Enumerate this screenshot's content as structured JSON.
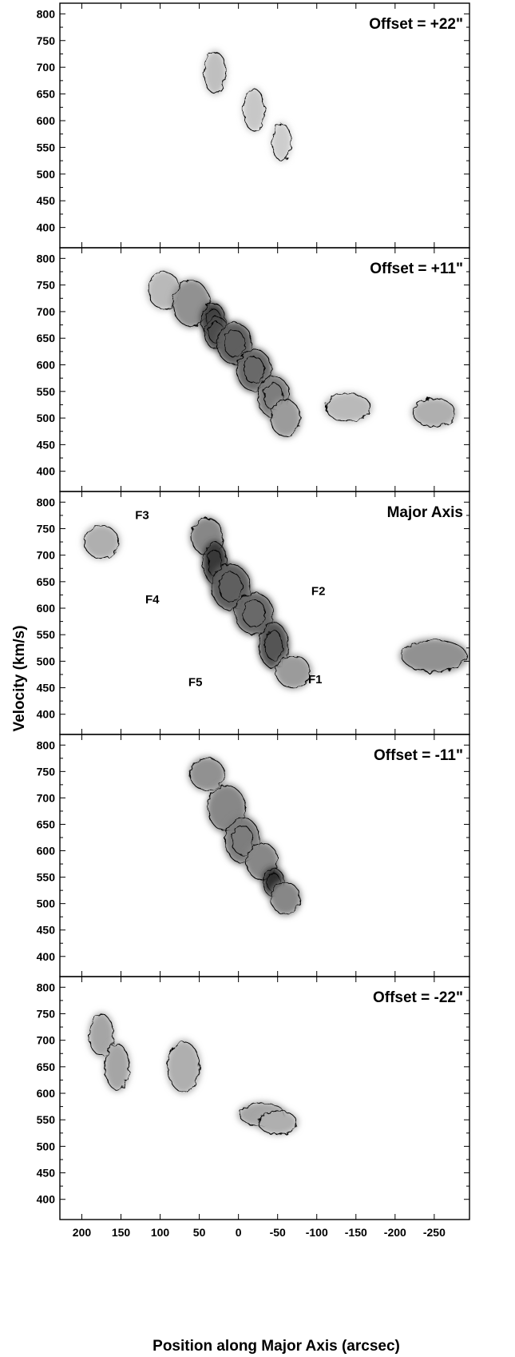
{
  "chart_data": {
    "type": "contour",
    "xlabel": "Position along Major Axis (arcsec)",
    "ylabel": "Velocity (km/s)",
    "xlim": [
      228,
      -295
    ],
    "ylim": [
      380,
      808
    ],
    "x_ticks": [
      200,
      150,
      100,
      50,
      0,
      -50,
      -100,
      -150,
      -200,
      -250
    ],
    "x_tick_labels": [
      "200",
      "150",
      "100",
      "50",
      "0",
      "-50",
      "-100",
      "-150",
      "-200",
      "-250"
    ],
    "y_ticks": [
      400,
      450,
      500,
      550,
      600,
      650,
      700,
      750,
      800
    ],
    "y_tick_labels": [
      "400",
      "450",
      "500",
      "550",
      "600",
      "650",
      "700",
      "750",
      "800"
    ],
    "panels": [
      {
        "label": "Offset = +22\"",
        "emission_ridge": [
          {
            "x": 30,
            "y": 690,
            "w": 12,
            "h": 40,
            "level": 0.22
          },
          {
            "x": -20,
            "y": 620,
            "w": 12,
            "h": 40,
            "level": 0.18
          },
          {
            "x": -55,
            "y": 560,
            "w": 10,
            "h": 35,
            "level": 0.15
          }
        ]
      },
      {
        "label": "Offset = +11\"",
        "emission_ridge": [
          {
            "x": 95,
            "y": 740,
            "w": 20,
            "h": 35,
            "level": 0.25
          },
          {
            "x": 60,
            "y": 715,
            "w": 24,
            "h": 45,
            "level": 0.45
          },
          {
            "x": 32,
            "y": 685,
            "w": 14,
            "h": 30,
            "level": 0.85
          },
          {
            "x": 28,
            "y": 660,
            "w": 14,
            "h": 30,
            "level": 0.8
          },
          {
            "x": 5,
            "y": 640,
            "w": 22,
            "h": 40,
            "level": 0.7
          },
          {
            "x": -20,
            "y": 590,
            "w": 22,
            "h": 40,
            "level": 0.65
          },
          {
            "x": -45,
            "y": 540,
            "w": 20,
            "h": 40,
            "level": 0.55
          },
          {
            "x": -60,
            "y": 500,
            "w": 18,
            "h": 35,
            "level": 0.4
          },
          {
            "x": -140,
            "y": 520,
            "w": 30,
            "h": 25,
            "level": 0.25
          },
          {
            "x": -250,
            "y": 510,
            "w": 28,
            "h": 25,
            "level": 0.3
          }
        ]
      },
      {
        "label": "Major Axis",
        "emission_ridge": [
          {
            "x": 175,
            "y": 725,
            "w": 22,
            "h": 30,
            "level": 0.3
          },
          {
            "x": 40,
            "y": 735,
            "w": 20,
            "h": 35,
            "level": 0.5
          },
          {
            "x": 30,
            "y": 685,
            "w": 14,
            "h": 40,
            "level": 0.9
          },
          {
            "x": 10,
            "y": 640,
            "w": 25,
            "h": 45,
            "level": 0.7
          },
          {
            "x": -20,
            "y": 590,
            "w": 25,
            "h": 40,
            "level": 0.65
          },
          {
            "x": -45,
            "y": 530,
            "w": 18,
            "h": 45,
            "level": 0.75
          },
          {
            "x": -70,
            "y": 480,
            "w": 22,
            "h": 30,
            "level": 0.4
          },
          {
            "x": -250,
            "y": 510,
            "w": 45,
            "h": 30,
            "level": 0.45
          }
        ],
        "annotations": [
          {
            "text": "F1",
            "x": -98,
            "y": 458
          },
          {
            "text": "F2",
            "x": -102,
            "y": 625
          },
          {
            "text": "F3",
            "x": 123,
            "y": 768
          },
          {
            "text": "F4",
            "x": 110,
            "y": 609
          },
          {
            "text": "F5",
            "x": 55,
            "y": 453
          }
        ]
      },
      {
        "label": "Offset = -11\"",
        "emission_ridge": [
          {
            "x": 40,
            "y": 745,
            "w": 22,
            "h": 30,
            "level": 0.45
          },
          {
            "x": 15,
            "y": 680,
            "w": 24,
            "h": 45,
            "level": 0.5
          },
          {
            "x": -5,
            "y": 620,
            "w": 22,
            "h": 45,
            "level": 0.55
          },
          {
            "x": -30,
            "y": 580,
            "w": 20,
            "h": 35,
            "level": 0.5
          },
          {
            "x": -45,
            "y": 540,
            "w": 12,
            "h": 25,
            "level": 0.95
          },
          {
            "x": -60,
            "y": 510,
            "w": 18,
            "h": 30,
            "level": 0.5
          }
        ]
      },
      {
        "label": "Offset = -22\"",
        "emission_ridge": [
          {
            "x": 175,
            "y": 710,
            "w": 14,
            "h": 40,
            "level": 0.35
          },
          {
            "x": 155,
            "y": 650,
            "w": 14,
            "h": 45,
            "level": 0.35
          },
          {
            "x": 70,
            "y": 650,
            "w": 20,
            "h": 50,
            "level": 0.3
          },
          {
            "x": -30,
            "y": 560,
            "w": 30,
            "h": 20,
            "level": 0.35
          },
          {
            "x": -50,
            "y": 545,
            "w": 25,
            "h": 20,
            "level": 0.3
          }
        ]
      }
    ]
  }
}
